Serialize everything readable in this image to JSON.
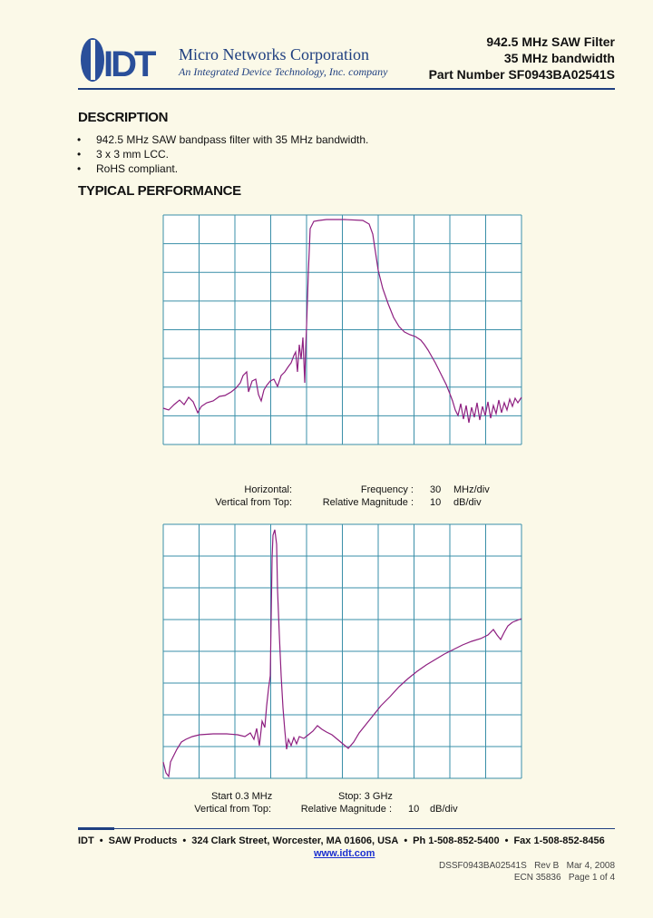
{
  "header": {
    "logo": "IDT",
    "company": "Micro Networks Corporation",
    "tagline": "An Integrated Device Technology, Inc. company",
    "title_lines": [
      "942.5 MHz SAW Filter",
      "35 MHz bandwidth",
      "Part Number SF0943BA02541S"
    ]
  },
  "description": {
    "heading": "DESCRIPTION",
    "bullets": [
      "942.5 MHz SAW bandpass filter with 35 MHz bandwidth.",
      "3 x 3 mm LCC.",
      "RoHS compliant."
    ]
  },
  "performance": {
    "heading": "TYPICAL PERFORMANCE",
    "plot1": {
      "horizontal_label": "Horizontal:",
      "horizontal_quantity": "Frequency :",
      "horizontal_value": 30,
      "horizontal_unit": "MHz/div",
      "vertical_label": "Vertical from Top:",
      "vertical_quantity": "Relative Magnitude :",
      "vertical_value": 10,
      "vertical_unit": "dB/div"
    },
    "plot2": {
      "start": "Start  0.3 MHz",
      "stop": "Stop: 3 GHz",
      "vertical_label": "Vertical from Top:",
      "vertical_quantity": "Relative Magnitude :",
      "vertical_value": 10,
      "vertical_unit": "dB/div"
    }
  },
  "footer": {
    "items": [
      "IDT",
      "SAW Products",
      "324 Clark Street, Worcester, MA 01606, USA",
      "Ph 1-508-852-5400",
      "Fax 1-508-852-8456"
    ],
    "website": "www.idt.com",
    "doc_number": "DSSF0943BA02541S   Rev B   Mar 4, 2008",
    "ecn": "ECN 35836   Page 1 of 4"
  }
}
